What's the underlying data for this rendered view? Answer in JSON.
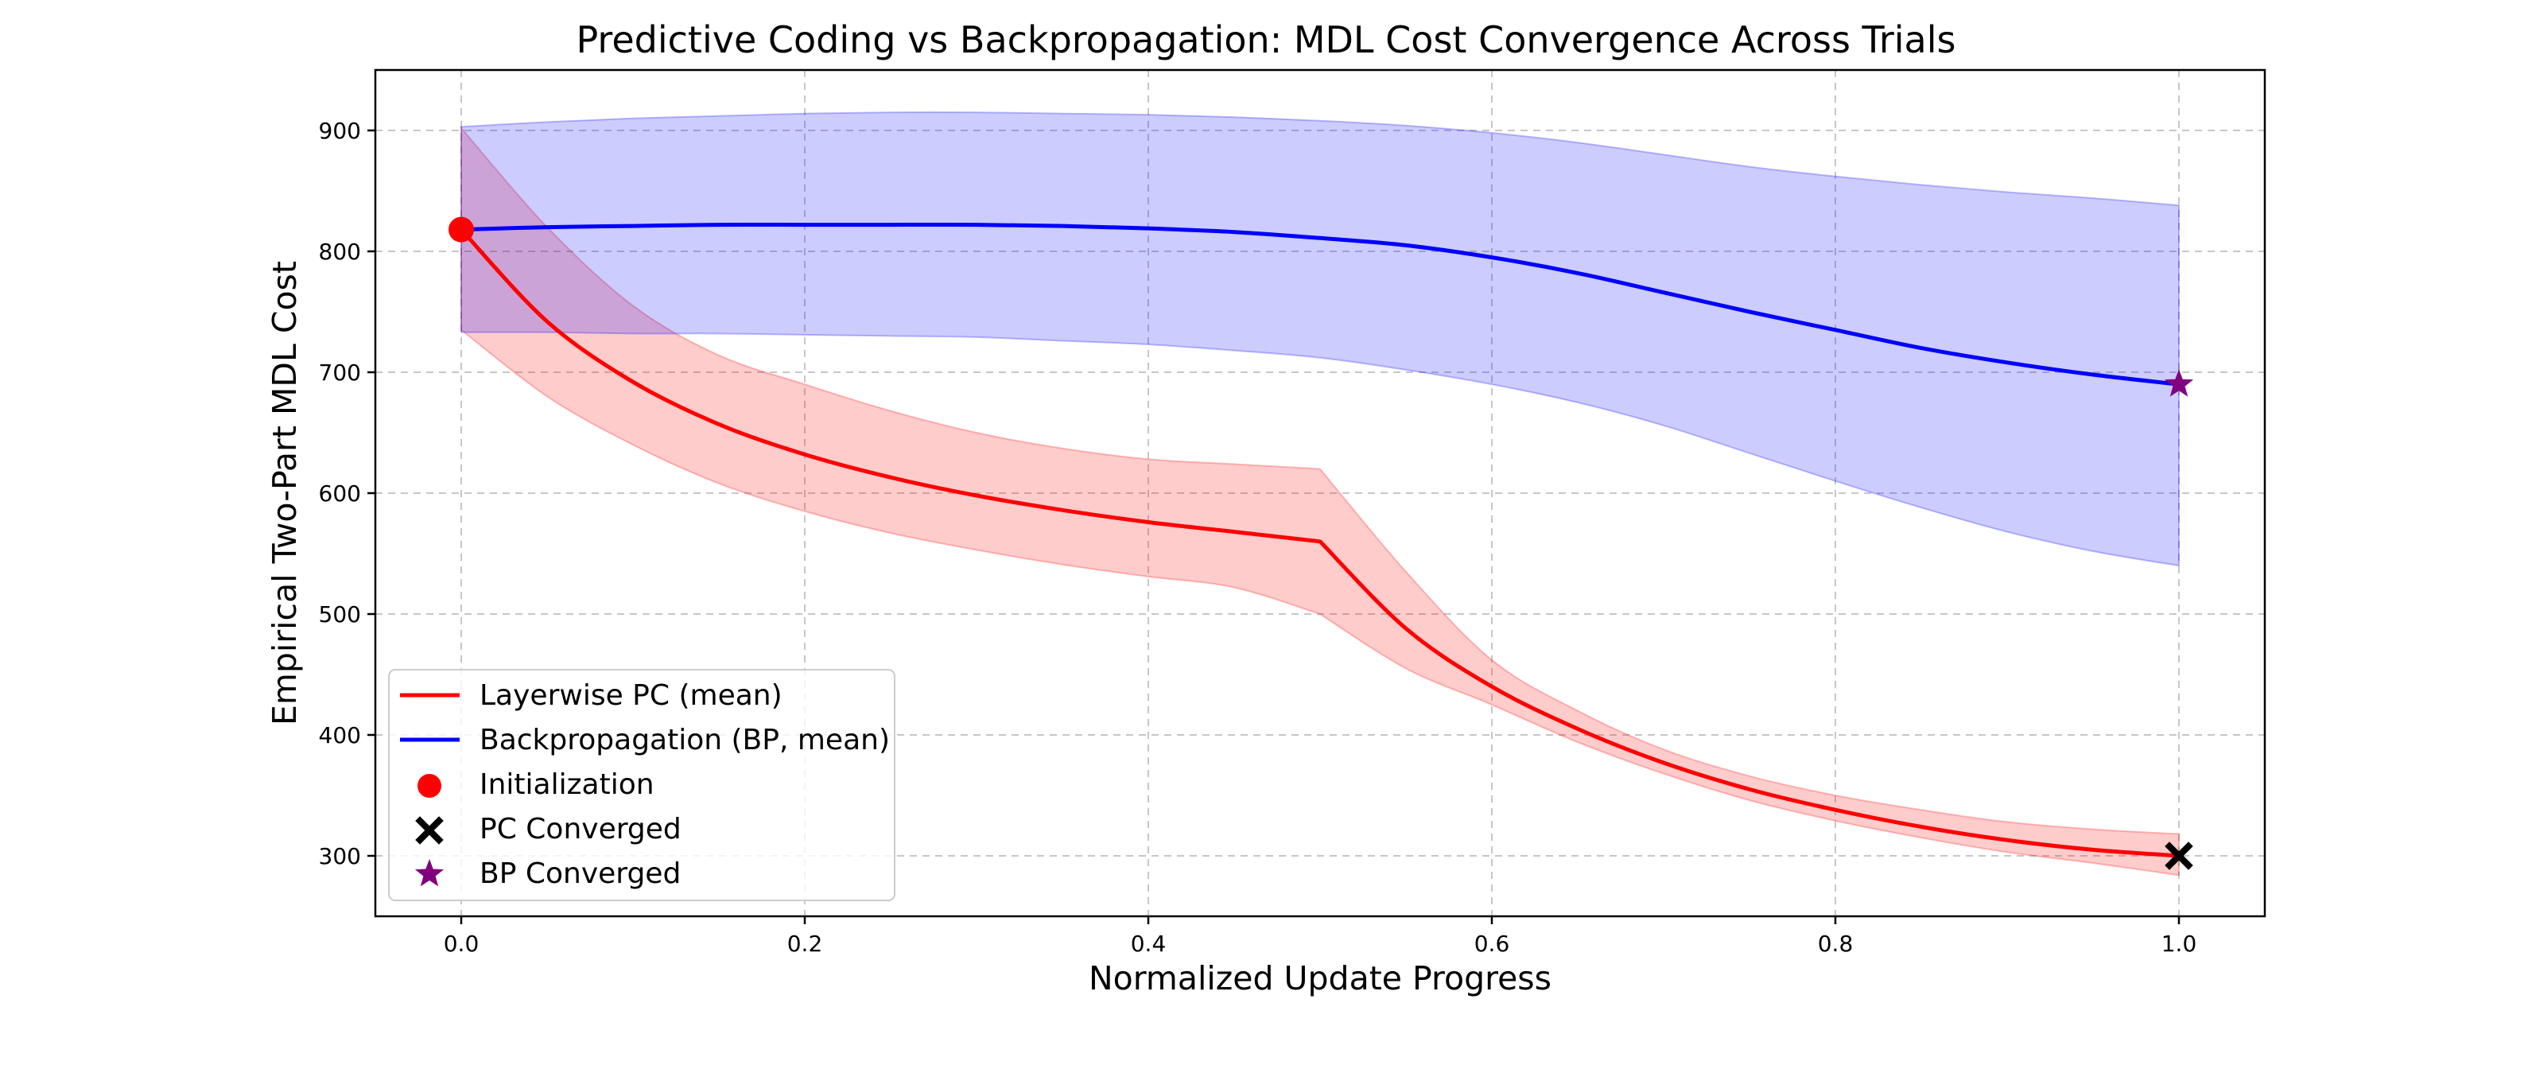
{
  "chart_data": {
    "type": "line",
    "title": "Predictive Coding vs Backpropagation: MDL Cost Convergence Across Trials",
    "xlabel": "Normalized Update Progress",
    "ylabel": "Empirical Two-Part MDL Cost",
    "xlim": [
      -0.05,
      1.05
    ],
    "ylim": [
      250,
      950
    ],
    "xticks": [
      0.0,
      0.2,
      0.4,
      0.6,
      0.8,
      1.0
    ],
    "xtick_labels": [
      "0.0",
      "0.2",
      "0.4",
      "0.6",
      "0.8",
      "1.0"
    ],
    "yticks": [
      300,
      400,
      500,
      600,
      700,
      800,
      900
    ],
    "ytick_labels": [
      "300",
      "400",
      "500",
      "600",
      "700",
      "800",
      "900"
    ],
    "grid": true,
    "legend_position": "lower-left",
    "series": [
      {
        "name": "Layerwise PC (mean)",
        "color": "#ff0000",
        "x": [
          0.0,
          0.05,
          0.1,
          0.15,
          0.2,
          0.25,
          0.3,
          0.35,
          0.4,
          0.45,
          0.5,
          0.55,
          0.6,
          0.65,
          0.7,
          0.75,
          0.8,
          0.85,
          0.9,
          0.95,
          1.0
        ],
        "mean": [
          818,
          742,
          692,
          657,
          632,
          613,
          598,
          586,
          576,
          568,
          560,
          488,
          440,
          405,
          377,
          355,
          338,
          324,
          313,
          305,
          300
        ],
        "lower": [
          735,
          680,
          640,
          608,
          585,
          567,
          553,
          541,
          531,
          522,
          500,
          455,
          425,
          394,
          368,
          346,
          329,
          315,
          303,
          294,
          284
        ],
        "upper": [
          902,
          820,
          755,
          714,
          690,
          668,
          650,
          637,
          628,
          624,
          620,
          535,
          462,
          420,
          388,
          366,
          350,
          338,
          328,
          322,
          318
        ]
      },
      {
        "name": "Backpropagation (BP, mean)",
        "color": "#0000ff",
        "x": [
          0.0,
          0.05,
          0.1,
          0.15,
          0.2,
          0.25,
          0.3,
          0.35,
          0.4,
          0.45,
          0.5,
          0.55,
          0.6,
          0.65,
          0.7,
          0.75,
          0.8,
          0.85,
          0.9,
          0.95,
          1.0
        ],
        "mean": [
          818,
          820,
          821,
          822,
          822,
          822,
          822,
          821,
          819,
          816,
          811,
          805,
          795,
          782,
          766,
          750,
          735,
          720,
          708,
          698,
          690
        ],
        "lower": [
          733,
          733,
          732,
          732,
          731,
          730,
          729,
          726,
          723,
          718,
          712,
          702,
          690,
          675,
          656,
          633,
          610,
          588,
          568,
          552,
          540
        ],
        "upper": [
          903,
          907,
          910,
          912,
          914,
          915,
          915,
          914,
          913,
          911,
          908,
          904,
          898,
          890,
          880,
          870,
          862,
          855,
          849,
          844,
          838
        ]
      }
    ],
    "markers": [
      {
        "name": "Initialization",
        "shape": "circle",
        "color": "#ff0000",
        "x": 0.0,
        "y": 818
      },
      {
        "name": "PC Converged",
        "shape": "x",
        "color": "#000000",
        "x": 1.0,
        "y": 300
      },
      {
        "name": "BP Converged",
        "shape": "star",
        "color": "#800080",
        "x": 1.0,
        "y": 690
      }
    ],
    "band_colors": {
      "pc": "#ff0000",
      "bp": "#0000ff"
    },
    "band_opacity": 0.2
  }
}
